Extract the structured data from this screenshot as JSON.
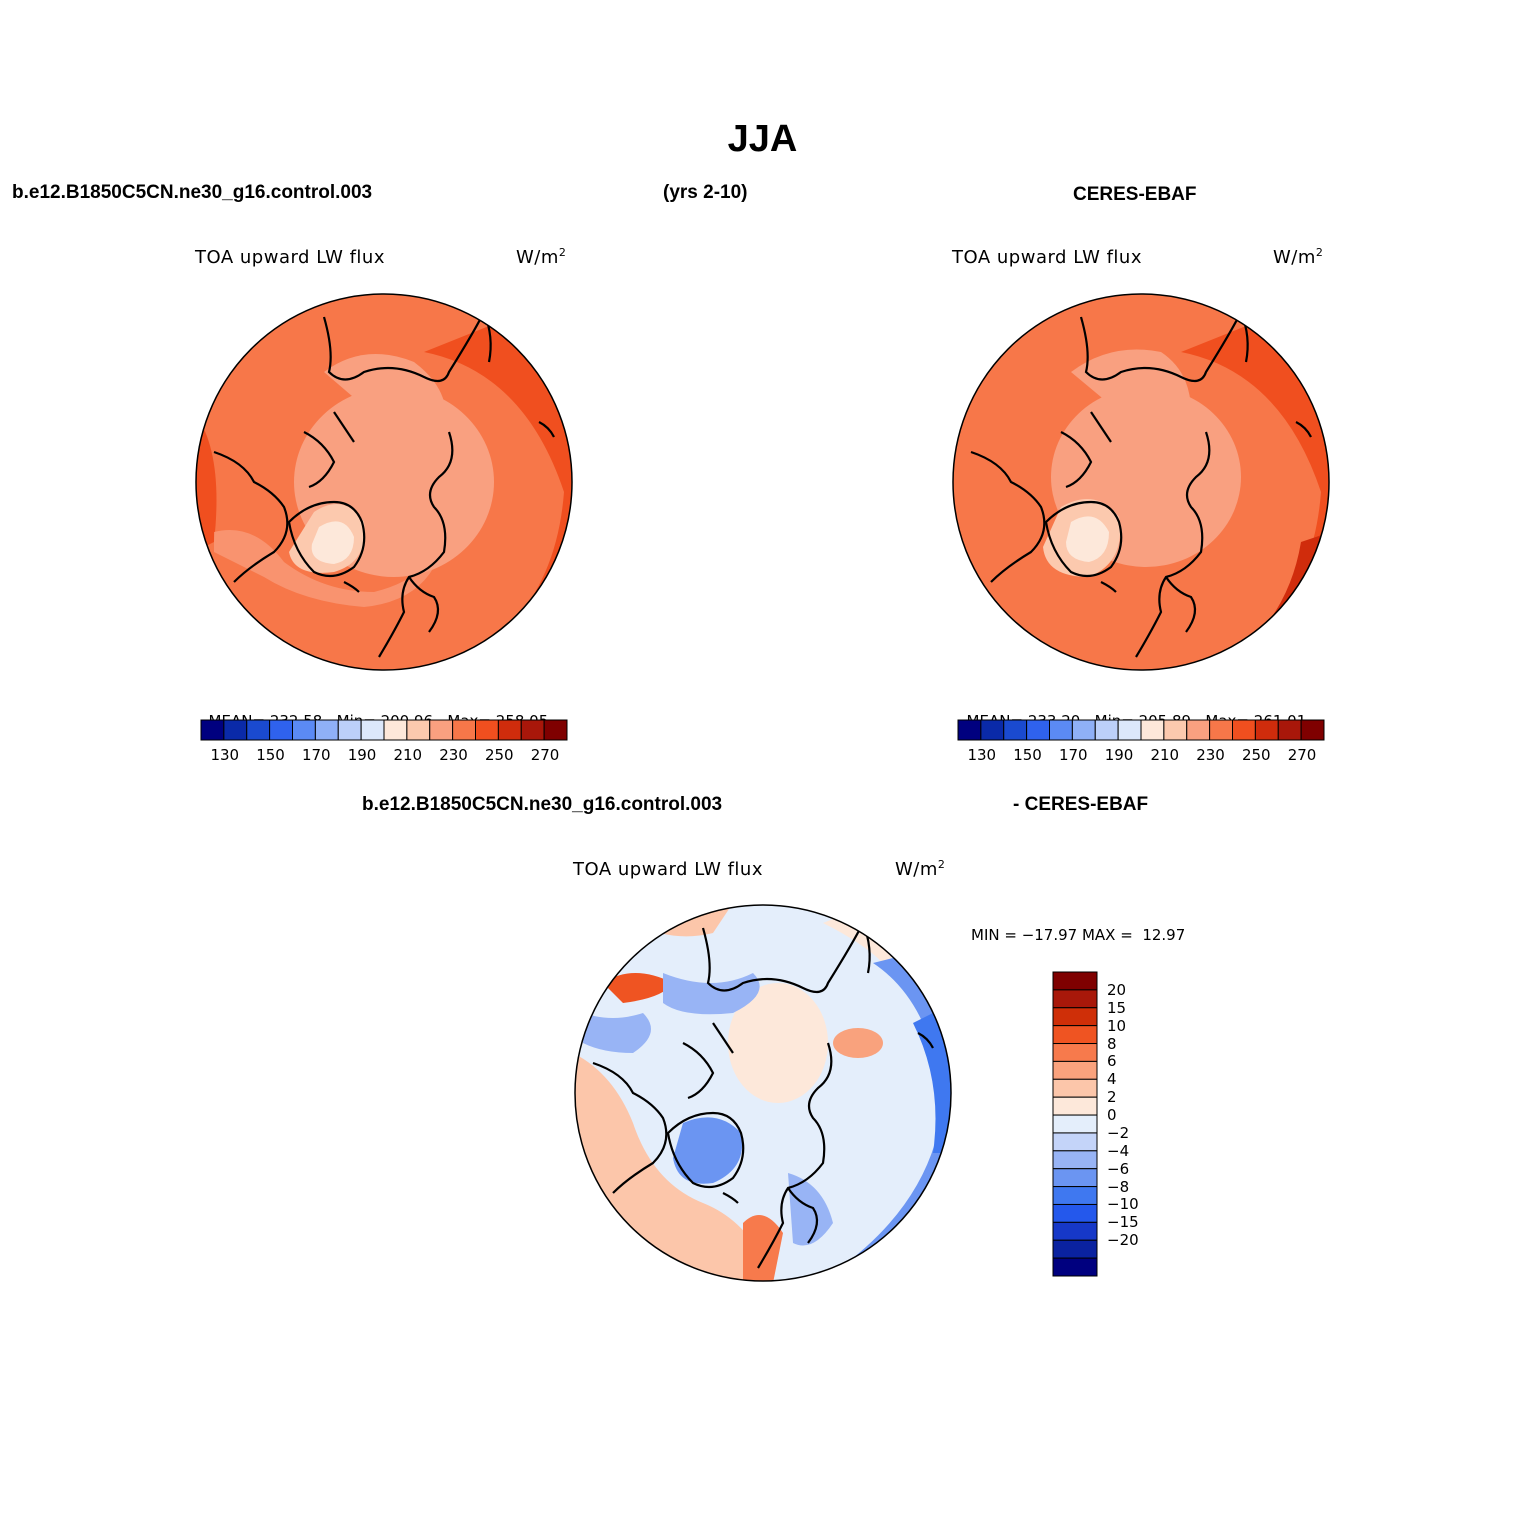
{
  "figure": {
    "title": "JJA",
    "case_label": "b.e12.B1850C5CN.ne30_g16.control.003",
    "years_label": "(yrs 2-10)",
    "obs_label": "CERES-EBAF",
    "diff_case_label": "b.e12.B1850C5CN.ne30_g16.control.003",
    "diff_obs_label": "- CERES-EBAF"
  },
  "colors": {
    "abs_scale": [
      "#00007f",
      "#0a2aa8",
      "#1a4ad0",
      "#2f62ee",
      "#5b8af4",
      "#8fb0f7",
      "#bcd0fa",
      "#dce8fb",
      "#fde8da",
      "#fcc9ae",
      "#f9a080",
      "#f77749",
      "#f04f1f",
      "#d02c0c",
      "#a8170a",
      "#7f0000"
    ],
    "diff_scale": [
      "#00007f",
      "#0a22a0",
      "#1638c8",
      "#2458ec",
      "#3f78f0",
      "#6b95f2",
      "#98b4f5",
      "#c4d4f9",
      "#e4eefb",
      "#fde8da",
      "#fcc6aa",
      "#f9a27d",
      "#f77a4c",
      "#ef5422",
      "#cf2f08",
      "#a8180a",
      "#7f0000"
    ]
  },
  "panels": [
    {
      "id": "model",
      "var_title": "TOA upward LW flux",
      "units_base": "W/m",
      "units_exp": "2",
      "stats": {
        "mean_label": "MEAN=",
        "mean": "232.58",
        "min_label": "Min=",
        "min": "200.96",
        "max_label": "Max=",
        "max": "258.05"
      },
      "colorbar_ticks": [
        "130",
        "150",
        "170",
        "190",
        "210",
        "230",
        "250",
        "270"
      ]
    },
    {
      "id": "obs",
      "var_title": "TOA upward LW flux",
      "units_base": "W/m",
      "units_exp": "2",
      "stats": {
        "mean_label": "MEAN=",
        "mean": "233.20",
        "min_label": "Min=",
        "min": "205.89",
        "max_label": "Max=",
        "max": "261.01"
      },
      "colorbar_ticks": [
        "130",
        "150",
        "170",
        "190",
        "210",
        "230",
        "250",
        "270"
      ]
    },
    {
      "id": "diff",
      "var_title": "TOA upward LW flux",
      "units_base": "W/m",
      "units_exp": "2",
      "minmax_text": "MIN = −17.97 MAX =  12.97",
      "colorbar_ticks": [
        "20",
        "15",
        "10",
        "8",
        "6",
        "4",
        "2",
        "0",
        "−2",
        "−4",
        "−6",
        "−8",
        "−10",
        "−15",
        "−20"
      ]
    }
  ]
}
